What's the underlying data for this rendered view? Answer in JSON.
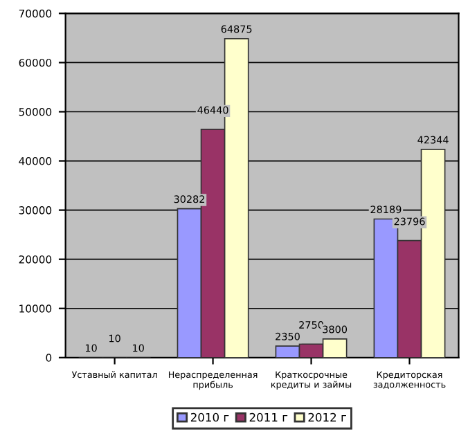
{
  "chart_data": {
    "type": "bar",
    "categories": [
      "Уставный капитал",
      "Нераспределенная\nприбыль",
      "Краткосрочные\nкредиты и займы",
      "Кредиторская\nзадолженность"
    ],
    "series": [
      {
        "name": "2010 г",
        "color": "#9999ff",
        "values": [
          10,
          30282,
          2350,
          28189
        ]
      },
      {
        "name": "2011 г",
        "color": "#993366",
        "values": [
          10,
          46440,
          2750,
          23796
        ]
      },
      {
        "name": "2012 г",
        "color": "#ffffcc",
        "values": [
          10,
          64875,
          3800,
          42344
        ]
      }
    ],
    "ylim": [
      0,
      70000
    ],
    "yticks": [
      0,
      10000,
      20000,
      30000,
      40000,
      50000,
      60000,
      70000
    ],
    "grid": "y",
    "legend": "bottom",
    "data_labels": true
  }
}
